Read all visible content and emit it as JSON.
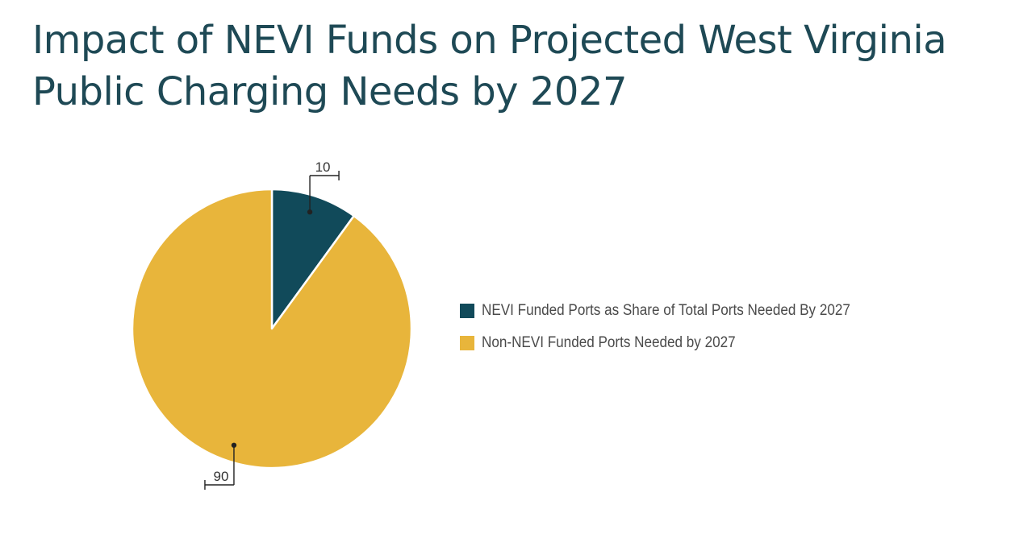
{
  "title": {
    "line1": "Impact of NEVI Funds on Projected West Virginia",
    "line2": "Public Charging Needs by 2027"
  },
  "colors": {
    "title": "#1e4955",
    "nevi": "#114a5a",
    "non_nevi": "#e8b53b",
    "label_line": "#222222"
  },
  "chart_data": {
    "type": "pie",
    "title": "Impact of NEVI Funds on Projected West Virginia Public Charging Needs by 2027",
    "legend_position": "right",
    "slices": [
      {
        "label": "NEVI Funded Ports as Share of Total Ports Needed By 2027",
        "value": 10,
        "data_label": "10",
        "color": "#114a5a"
      },
      {
        "label": "Non-NEVI Funded Ports Needed by 2027",
        "value": 90,
        "data_label": "90",
        "color": "#e8b53b"
      }
    ]
  }
}
